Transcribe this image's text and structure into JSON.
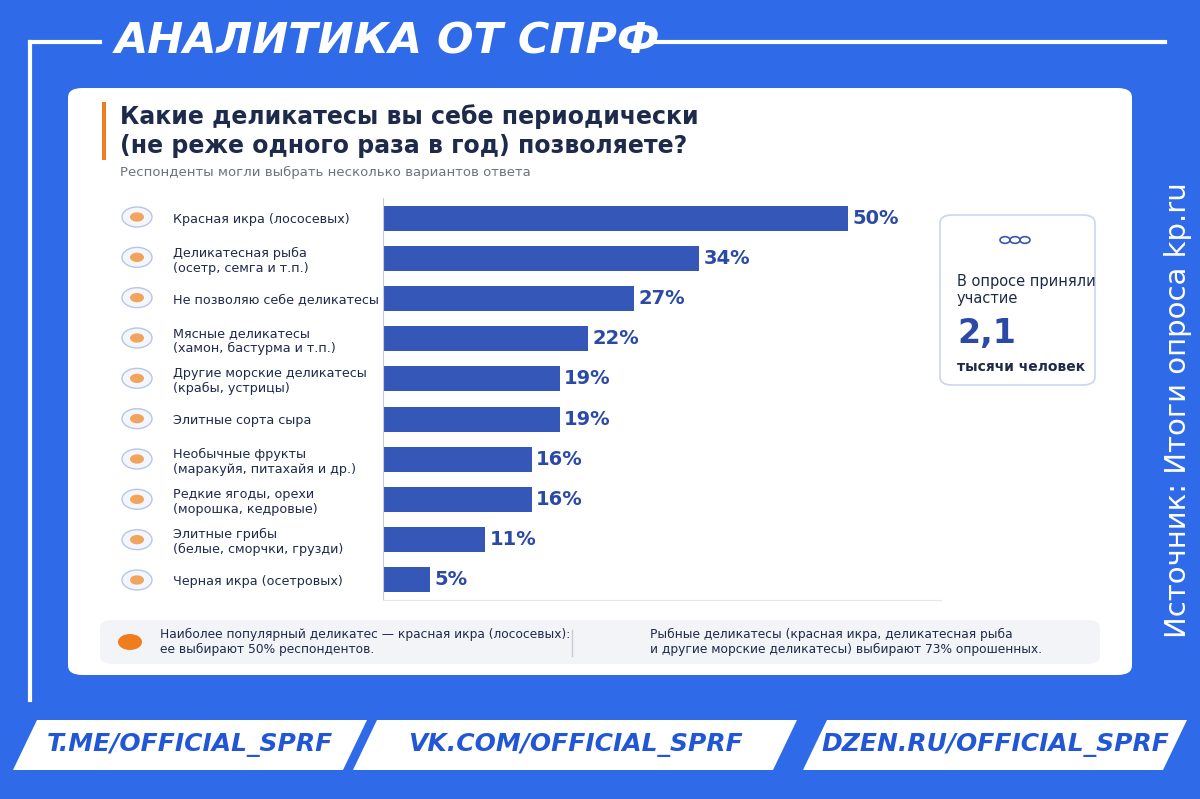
{
  "header": "АНАЛИТИКА ОТ СПРФ",
  "source": "Источник: Итоги опроса kp.ru",
  "chart_data": {
    "type": "bar",
    "orientation": "horizontal",
    "title": "Какие деликатесы вы себе периодически\n(не реже одного раза в год) позволяете?",
    "subtitle": "Респонденты могли выбрать несколько вариантов ответа",
    "categories": [
      "Красная икра (лососевых)",
      "Деликатесная рыба\n(осетр, семга и т.п.)",
      "Не позволяю себе деликатесы",
      "Мясные деликатесы\n(хамон, бастурма и т.п.)",
      "Другие морские деликатесы\n(крабы, устрицы)",
      "Элитные сорта сыра",
      "Необычные фрукты\n(маракуйя, питахайя и др.)",
      "Редкие ягоды, орехи\n(морошка, кедровые)",
      "Элитные грибы\n(белые, сморчки, грузди)",
      "Черная икра (осетровых)"
    ],
    "values": [
      50,
      34,
      27,
      22,
      19,
      19,
      16,
      16,
      11,
      5
    ],
    "value_labels": [
      "50%",
      "34%",
      "27%",
      "22%",
      "19%",
      "19%",
      "16%",
      "16%",
      "11%",
      "5%"
    ],
    "color": "#3557b7",
    "xlim": [
      0,
      60
    ],
    "xticks": [],
    "data_labels": true,
    "tick_labels": "y",
    "grid": false
  },
  "survey": {
    "text": "В опросе приняли\nучастие",
    "number": "2,1",
    "unit": "тысячи человек"
  },
  "notes": [
    "Наиболее популярный деликатес — красная икра (лососевых):\nее выбирают 50% респондентов.",
    "Рыбные деликатесы (красная икра, деликатесная рыба\nи другие морские деликатесы) выбирают 73% опрошенных."
  ],
  "links": [
    "T.ME/OFFICIAL_SPRF",
    "VK.COM/OFFICIAL_SPRF",
    "DZEN.RU/OFFICIAL_SPRF"
  ]
}
